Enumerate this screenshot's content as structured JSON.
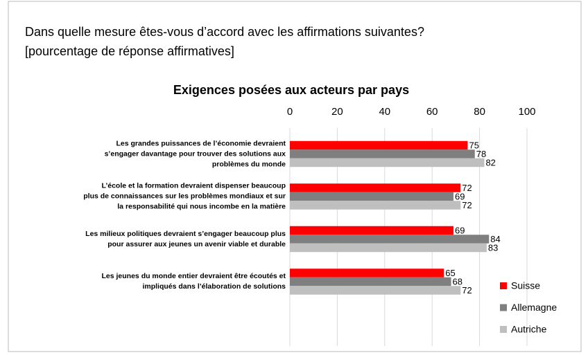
{
  "chart_data": {
    "type": "barh",
    "subtitle": [
      "Dans quelle mesure êtes-vous d’accord avec les affirmations suivantes?",
      "[pourcentage de réponse affirmatives]"
    ],
    "title": "Exigences posées aux acteurs par pays",
    "categories": [
      "Les grandes puissances de l’économie devraient\ns’engager davantage pour trouver des solutions aux\nproblèmes du monde",
      "L’école et la formation devraient dispenser beaucoup\nplus de connaissances sur les problèmes mondiaux et sur\nla responsabilité qui nous incombe en la matière",
      "Les milieux politiques devraient s’engager beaucoup plus\npour assurer aux jeunes un avenir viable et durable",
      "Les jeunes du monde entier devraient être écoutés et\nimpliqués dans l’élaboration de solutions"
    ],
    "series": [
      {
        "name": "Suisse",
        "color": "#ff0000",
        "values": [
          75,
          72,
          69,
          65
        ]
      },
      {
        "name": "Allemagne",
        "color": "#7f7f7f",
        "values": [
          78,
          69,
          84,
          68
        ]
      },
      {
        "name": "Autriche",
        "color": "#bfbfbf",
        "values": [
          82,
          72,
          83,
          72
        ]
      }
    ],
    "xlim": [
      0,
      100
    ],
    "xticks": [
      0,
      20,
      40,
      60,
      80,
      100
    ],
    "grid": true,
    "legend": "bottom-right"
  }
}
